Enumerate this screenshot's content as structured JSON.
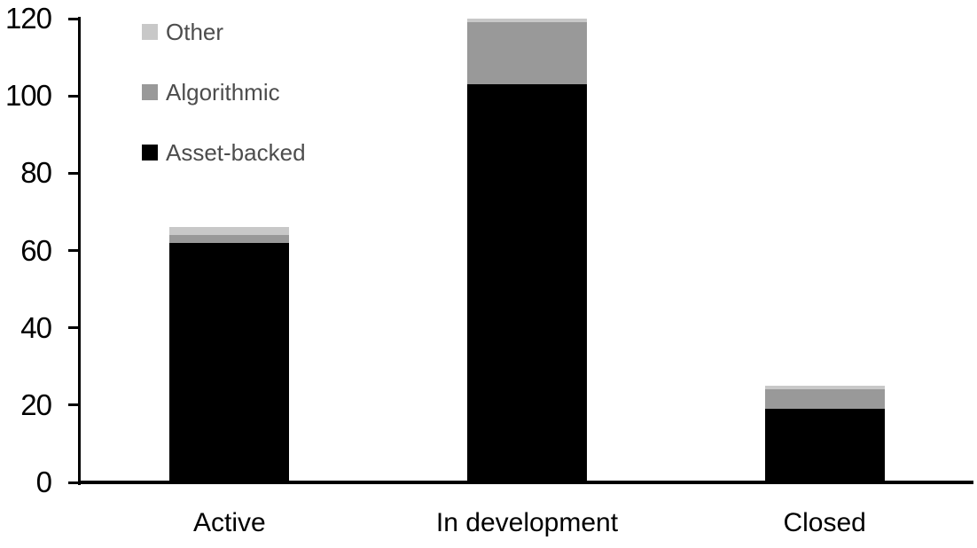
{
  "chart_data": {
    "type": "bar",
    "stacked": true,
    "title": "",
    "xlabel": "",
    "ylabel": "",
    "categories": [
      "Active",
      "In development",
      "Closed"
    ],
    "series": [
      {
        "name": "Asset-backed",
        "color": "#000000",
        "values": [
          62,
          103,
          19
        ]
      },
      {
        "name": "Algorithmic",
        "color": "#999999",
        "values": [
          2,
          16,
          5
        ]
      },
      {
        "name": "Other",
        "color": "#c8c8c8",
        "values": [
          2,
          1,
          1
        ]
      }
    ],
    "ylim": [
      0,
      120
    ],
    "yticks": [
      0,
      20,
      40,
      60,
      80,
      100,
      120
    ],
    "grid": false,
    "legend_position": "top-left",
    "legend": {
      "items": [
        {
          "label": "Other",
          "color": "#c8c8c8"
        },
        {
          "label": "Algorithmic",
          "color": "#999999"
        },
        {
          "label": "Asset-backed",
          "color": "#000000"
        }
      ],
      "text_color": "#4d4d4d"
    },
    "axis_color": "#000000",
    "background": "#ffffff"
  }
}
